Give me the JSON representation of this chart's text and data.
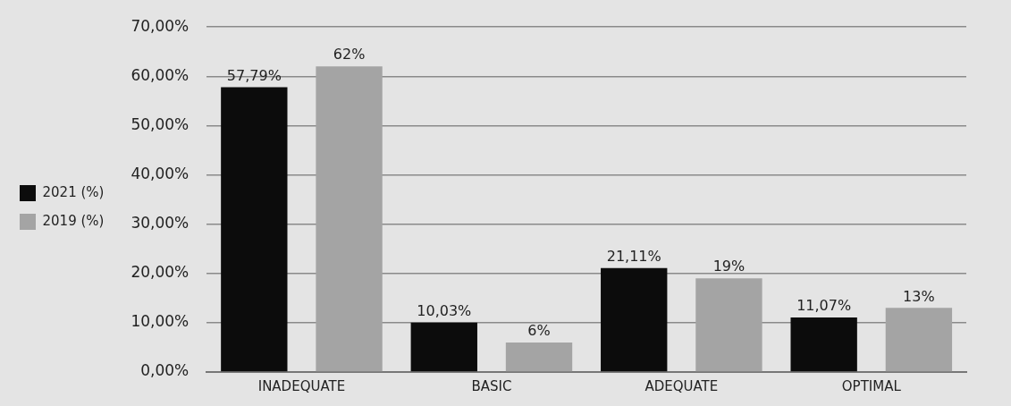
{
  "chart_data": {
    "type": "bar",
    "categories": [
      "INADEQUATE",
      "BASIC",
      "ADEQUATE",
      "OPTIMAL"
    ],
    "series": [
      {
        "name": "2021 (%)",
        "color": "#0c0c0c",
        "values": [
          57.79,
          10.03,
          21.11,
          11.07
        ],
        "value_labels": [
          "57,79%",
          "10,03%",
          "21,11%",
          "11,07%"
        ]
      },
      {
        "name": "2019 (%)",
        "color": "#a4a4a4",
        "values": [
          62,
          6,
          19,
          13
        ],
        "value_labels": [
          "62%",
          "6%",
          "19%",
          "13%"
        ]
      }
    ],
    "ylim": [
      0,
      70
    ],
    "yticks": [
      {
        "value": 0,
        "label": "0,00%"
      },
      {
        "value": 10,
        "label": "10,00%"
      },
      {
        "value": 20,
        "label": "20,00%"
      },
      {
        "value": 30,
        "label": "30,00%"
      },
      {
        "value": 40,
        "label": "40,00%"
      },
      {
        "value": 50,
        "label": "50,00%"
      },
      {
        "value": 60,
        "label": "60,00%"
      },
      {
        "value": 70,
        "label": "70,00%"
      }
    ],
    "grid": "y",
    "legend": "left"
  }
}
